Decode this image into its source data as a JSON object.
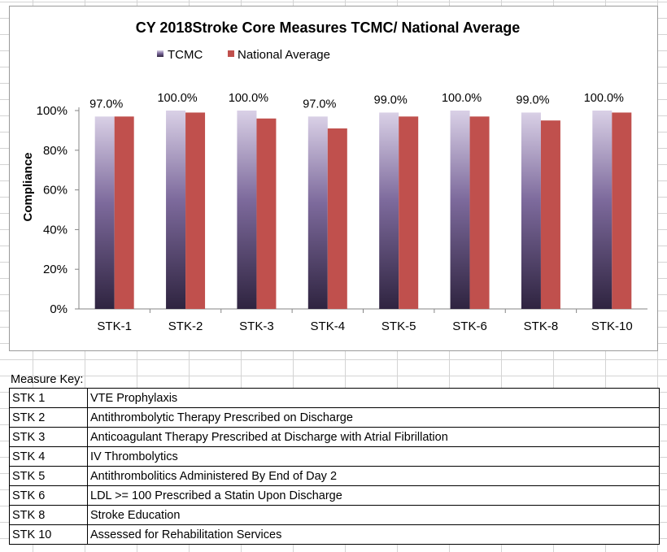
{
  "chart_data": {
    "type": "bar",
    "title": "CY 2018Stroke Core Measures TCMC/ National Average",
    "ylabel": "Compliance",
    "xlabel": "",
    "categories": [
      "STK-1",
      "STK-2",
      "STK-3",
      "STK-4",
      "STK-5",
      "STK-6",
      "STK-8",
      "STK-10"
    ],
    "series": [
      {
        "name": "TCMC",
        "values": [
          97,
          100,
          100,
          97,
          99,
          100,
          99,
          100
        ],
        "color": "#5a4a78",
        "gradient": [
          "#d9d0e6",
          "#2f2440"
        ]
      },
      {
        "name": "National Average",
        "values": [
          97,
          99,
          96,
          91,
          97,
          97,
          95,
          99
        ],
        "color": "#c0504d"
      }
    ],
    "data_labels": [
      "97.0%",
      "100.0%",
      "100.0%",
      "97.0%",
      "99.0%",
      "100.0%",
      "99.0%",
      "100.0%"
    ],
    "y_ticks": [
      "0%",
      "20%",
      "40%",
      "60%",
      "80%",
      "100%"
    ],
    "ylim": [
      0,
      100
    ],
    "grid": false,
    "legend_position": "top"
  },
  "measure_key": {
    "caption": "Measure Key:",
    "rows": [
      {
        "code": "STK  1",
        "description": "VTE Prophylaxis"
      },
      {
        "code": "STK  2",
        "description": "Antithrombolytic Therapy Prescribed on Discharge"
      },
      {
        "code": "STK  3",
        "description": "Anticoagulant Therapy Prescribed at Discharge with Atrial Fibrillation"
      },
      {
        "code": "STK  4",
        "description": "IV Thrombolytics"
      },
      {
        "code": "STK  5",
        "description": "Antithrombolitics Administered By End of Day 2"
      },
      {
        "code": "STK  6",
        "description": "LDL >= 100  Prescribed a Statin Upon Discharge"
      },
      {
        "code": "STK  8",
        "description": "Stroke Education"
      },
      {
        "code": "STK  10",
        "description": "Assessed for Rehabilitation Services"
      }
    ]
  }
}
